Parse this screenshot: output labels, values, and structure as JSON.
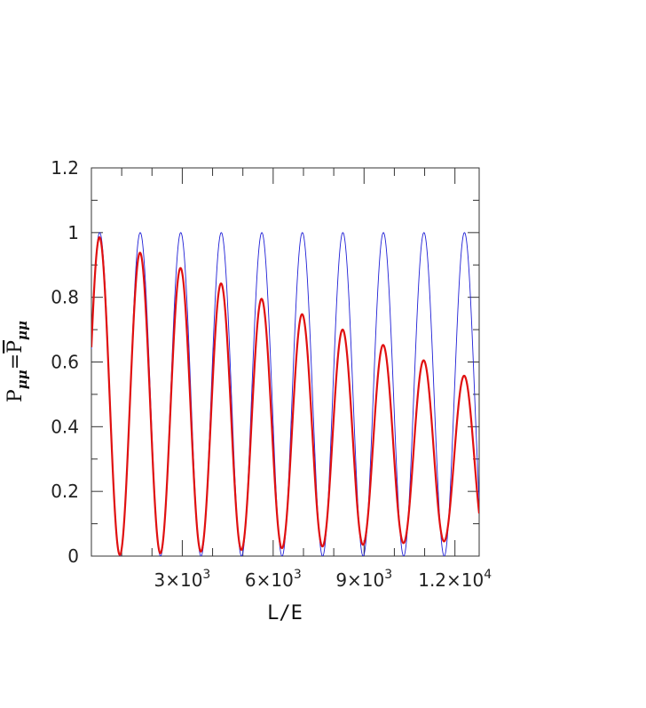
{
  "chart_data": {
    "type": "line",
    "title": "",
    "xlabel": "L/E",
    "ylabel": {
      "main": "P",
      "sub": "μμ",
      "eq": "=",
      "bar_main": "P",
      "bar_sub": "μμ"
    },
    "xlim": [
      0,
      12800
    ],
    "ylim": [
      0,
      1.2
    ],
    "grid": false,
    "legend": "none",
    "x_ticks": [
      {
        "value": 3000,
        "mantissa": "3×10",
        "exp": "3"
      },
      {
        "value": 6000,
        "mantissa": "6×10",
        "exp": "3"
      },
      {
        "value": 9000,
        "mantissa": "9×10",
        "exp": "3"
      },
      {
        "value": 12000,
        "mantissa": "1.2×10",
        "exp": "4"
      }
    ],
    "y_ticks": [
      {
        "value": 0,
        "label": "0"
      },
      {
        "value": 0.2,
        "label": "0.2"
      },
      {
        "value": 0.4,
        "label": "0.4"
      },
      {
        "value": 0.6,
        "label": "0.6"
      },
      {
        "value": 0.8,
        "label": "0.8"
      },
      {
        "value": 1.0,
        "label": "1"
      },
      {
        "value": 1.2,
        "label": "1.2"
      }
    ],
    "series": [
      {
        "color": "#1f1fd6",
        "stroke": "thin",
        "model": "undamped oscillation",
        "period": 1337.8,
        "peak_x": 1612,
        "peak_y_first": 1.0,
        "peak_y_last": 1.0,
        "min_first": 0,
        "min_last": 0
      },
      {
        "color": "#e01010",
        "stroke": "thick",
        "model": "damped oscillation",
        "period": 1337.8,
        "peak_x": 270,
        "peak_y_first": 0.995,
        "peak_y_last": 0.54,
        "min_first": 0.0,
        "min_last": 0.05
      }
    ]
  }
}
